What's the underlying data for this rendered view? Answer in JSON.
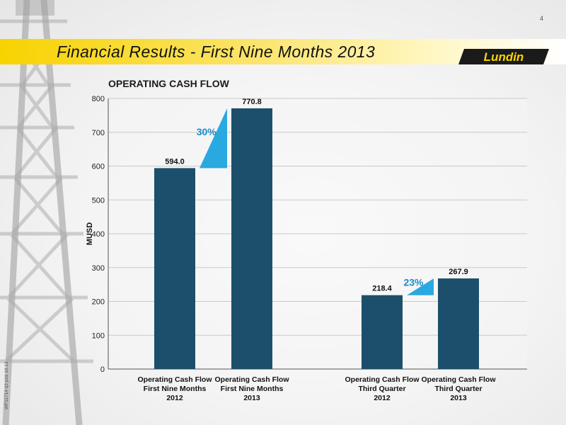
{
  "page": {
    "number": "4"
  },
  "header": {
    "title": "Financial Results - First Nine Months 2013",
    "logo_text": "Lundin"
  },
  "footer": {
    "code": "WF11714 q3 p16 10.13"
  },
  "colors": {
    "bar": "#1c4f6b",
    "growth_arrow": "#29a9e0",
    "growth_text": "#1b8cc9",
    "banner": "#f7d300"
  },
  "chart_data": {
    "type": "bar",
    "title": "OPERATING CASH FLOW",
    "ylabel": "MUSD",
    "xlabel": "",
    "ylim": [
      0,
      800
    ],
    "yticks": [
      0,
      100,
      200,
      300,
      400,
      500,
      600,
      700,
      800
    ],
    "grid": true,
    "categories": [
      [
        "Operating Cash Flow",
        "First Nine Months",
        "2012"
      ],
      [
        "Operating Cash Flow",
        "First Nine Months",
        "2013"
      ],
      [
        "Operating Cash Flow",
        "Third Quarter",
        "2012"
      ],
      [
        "Operating Cash Flow",
        "Third Quarter",
        "2013"
      ]
    ],
    "values": [
      594.0,
      770.8,
      218.4,
      267.9
    ],
    "value_labels": [
      "594.0",
      "770.8",
      "218.4",
      "267.9"
    ],
    "annotations": [
      {
        "text": "30%",
        "from_bar": 0,
        "to_bar": 1
      },
      {
        "text": "23%",
        "from_bar": 2,
        "to_bar": 3
      }
    ]
  }
}
